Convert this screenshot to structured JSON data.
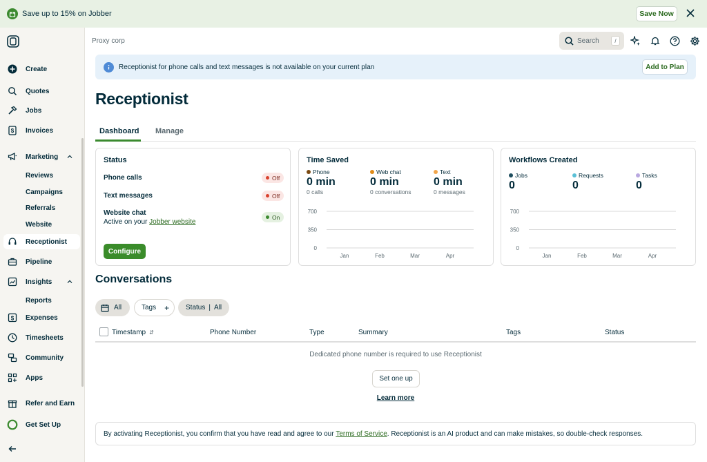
{
  "promo": {
    "text": "Save up to 15% on Jobber",
    "button": "Save Now"
  },
  "sidebar": {
    "items": [
      {
        "label": "Create"
      },
      {
        "label": "Quotes"
      },
      {
        "label": "Jobs"
      },
      {
        "label": "Invoices"
      },
      {
        "label": "Marketing"
      },
      {
        "label": "Reviews"
      },
      {
        "label": "Campaigns"
      },
      {
        "label": "Referrals"
      },
      {
        "label": "Website"
      },
      {
        "label": "Receptionist"
      },
      {
        "label": "Pipeline"
      },
      {
        "label": "Insights"
      },
      {
        "label": "Reports"
      },
      {
        "label": "Expenses"
      },
      {
        "label": "Timesheets"
      },
      {
        "label": "Community"
      },
      {
        "label": "Apps"
      },
      {
        "label": "Refer and Earn"
      },
      {
        "label": "Get Set Up"
      }
    ]
  },
  "topbar": {
    "company": "Proxy corp",
    "search_label": "Search",
    "search_shortcut": "/"
  },
  "notice": {
    "text": "Receptionist for phone calls and text messages is not available on your current plan",
    "button": "Add to Plan"
  },
  "page": {
    "title": "Receptionist"
  },
  "tabs": [
    {
      "label": "Dashboard",
      "active": true
    },
    {
      "label": "Manage",
      "active": false
    }
  ],
  "status_card": {
    "title": "Status",
    "rows": [
      {
        "label": "Phone calls",
        "state": "Off"
      },
      {
        "label": "Text messages",
        "state": "Off"
      },
      {
        "label": "Website chat",
        "state": "On",
        "sub_prefix": "Active on your",
        "sub_link": "Jobber website"
      }
    ],
    "button": "Configure"
  },
  "time_saved": {
    "title": "Time Saved",
    "metrics": [
      {
        "label": "Phone",
        "value": "0 min",
        "sub": "0 calls",
        "color": "#7a4a12"
      },
      {
        "label": "Web chat",
        "value": "0 min",
        "sub": "0 conversations",
        "color": "#e08c1a"
      },
      {
        "label": "Text",
        "value": "0 min",
        "sub": "0 messages",
        "color": "#f2a64b"
      }
    ]
  },
  "workflows": {
    "title": "Workflows Created",
    "metrics": [
      {
        "label": "Jobs",
        "value": "0",
        "color": "#1f4e5f"
      },
      {
        "label": "Requests",
        "value": "0",
        "color": "#5bc0d6"
      },
      {
        "label": "Tasks",
        "value": "0",
        "color": "#b9a8e0"
      }
    ]
  },
  "chart_data": [
    {
      "type": "line",
      "title": "Time Saved",
      "categories": [
        "Jan",
        "Feb",
        "Mar",
        "Apr"
      ],
      "y_ticks": [
        "700",
        "350",
        "0"
      ],
      "ylim": [
        0,
        700
      ],
      "series": []
    },
    {
      "type": "line",
      "title": "Workflows Created",
      "categories": [
        "Jan",
        "Feb",
        "Mar",
        "Apr"
      ],
      "y_ticks": [
        "700",
        "350",
        "0"
      ],
      "ylim": [
        0,
        700
      ],
      "series": []
    }
  ],
  "conversations": {
    "title": "Conversations",
    "filters": {
      "all": "All",
      "tags": "Tags",
      "status_label": "Status",
      "status_value": "All"
    },
    "columns": [
      "Timestamp",
      "Phone Number",
      "Type",
      "Summary",
      "Tags",
      "Status"
    ],
    "empty_message": "Dedicated phone number is required to use Receptionist",
    "setup_button": "Set one up",
    "learn_more": "Learn more"
  },
  "footer": {
    "prefix": "By activating Receptionist, you confirm that you have read and agree to our",
    "link": "Terms of Service",
    "suffix": ". Receptionist is an AI product and can make mistakes, so double-check responses."
  }
}
